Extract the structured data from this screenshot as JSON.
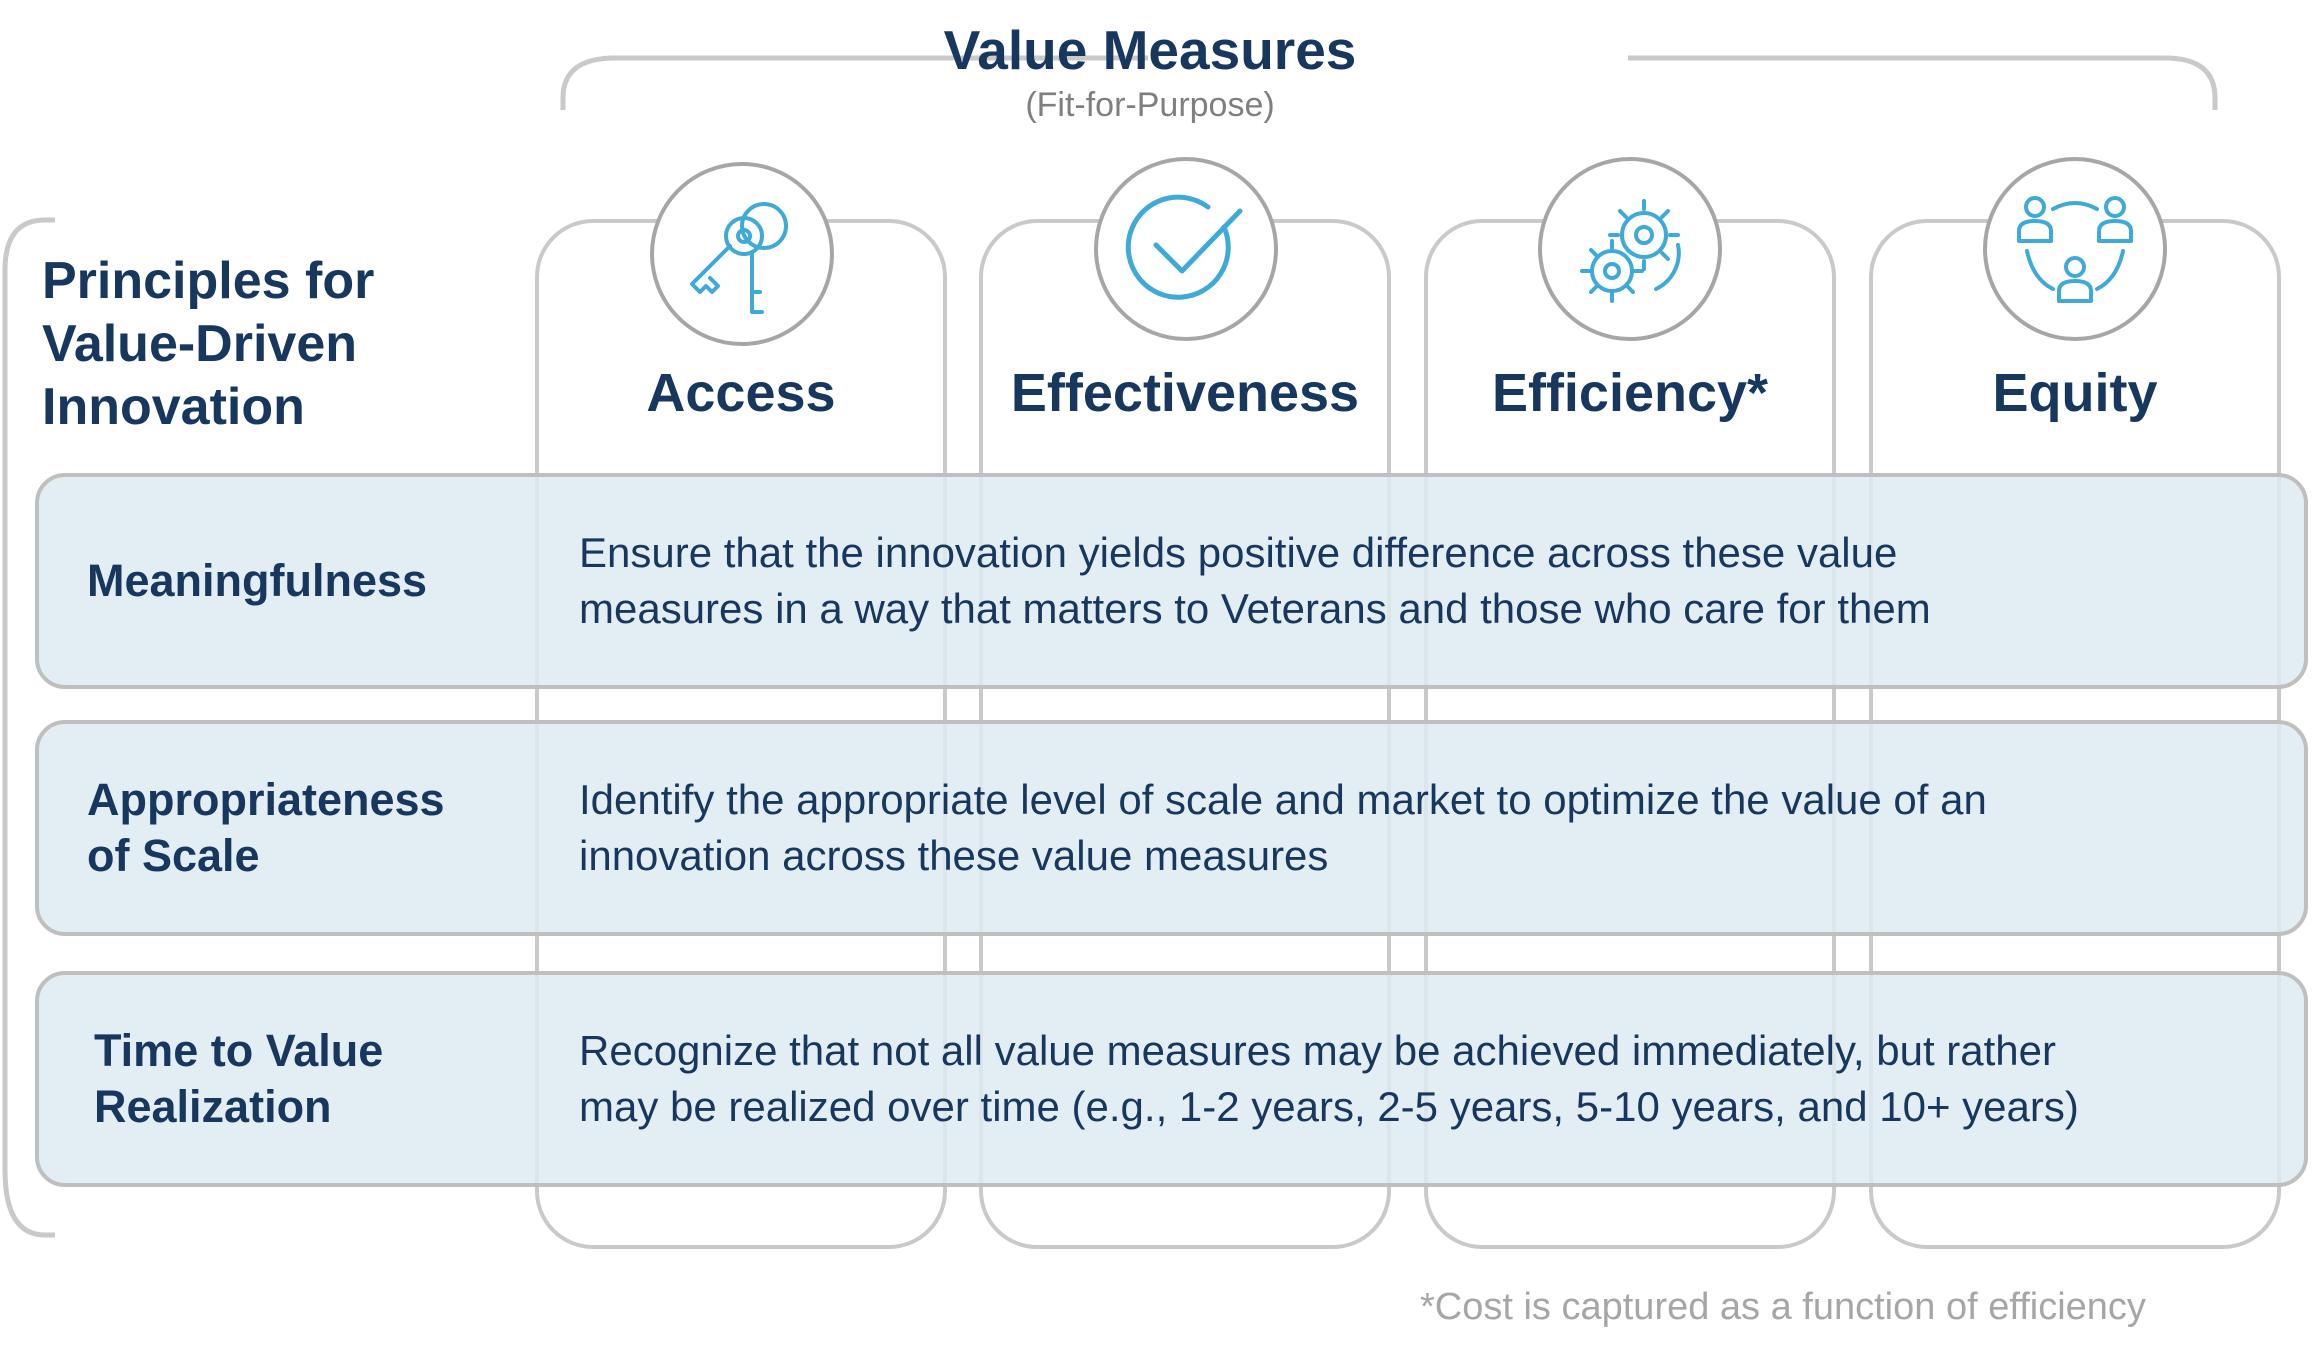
{
  "header": {
    "title": "Value Measures",
    "subtitle": "(Fit-for-Purpose)"
  },
  "principles_title": "Principles for\nValue-Driven\nInnovation",
  "columns": [
    {
      "label": "Access",
      "icon": "key-icon"
    },
    {
      "label": "Effectiveness",
      "icon": "checkmark-icon"
    },
    {
      "label": "Efficiency*",
      "icon": "gears-icon"
    },
    {
      "label": "Equity",
      "icon": "people-network-icon"
    }
  ],
  "rows": [
    {
      "label": "Meaningfulness",
      "description": "Ensure that the innovation  yields positive  difference across these value\nmeasures  in a way that matters  to Veterans  and those  who care for them"
    },
    {
      "label": "Appropriateness\nof Scale",
      "description": "Identify the appropriate  level  of scale and market  to optimize  the value  of an\ninnovation  across these value  measures"
    },
    {
      "label": "Time  to Value\nRealization",
      "description": "Recognize  that  not all value  measures may be achieved  immediately,  but rather\nmay be realized over time (e.g., 1-2 years, 2-5 years, 5-10 years, and 10+ years)"
    }
  ],
  "footnote": "*Cost is captured as a function of efficiency",
  "colors": {
    "navy": "#17375e",
    "icon_blue": "#3fa9d8",
    "row_fill": "#deebf2",
    "border_gray": "#c9c9c9"
  }
}
